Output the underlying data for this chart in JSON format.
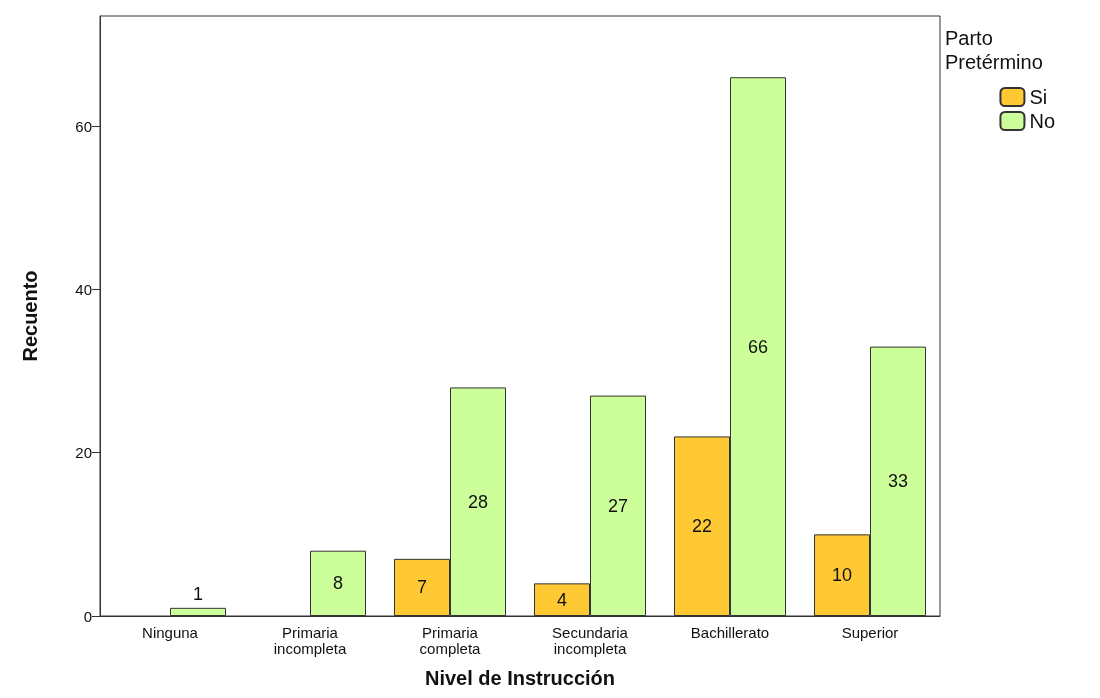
{
  "chart_data": {
    "type": "bar",
    "xlabel": "Nivel de Instrucción",
    "ylabel": "Recuento",
    "legend_title": "Parto Pretérmino",
    "categories": [
      "Ninguna",
      "Primaria incompleta",
      "Primaria completa",
      "Secundaria incompleta",
      "Bachillerato",
      "Superior"
    ],
    "series": [
      {
        "name": "Si",
        "color": "#ffc933",
        "values": [
          null,
          null,
          7,
          4,
          22,
          10
        ]
      },
      {
        "name": "No",
        "color": "#ccff99",
        "values": [
          1,
          8,
          28,
          27,
          66,
          33
        ]
      }
    ],
    "ylim": [
      0,
      73.5
    ],
    "yticks": [
      0,
      20,
      40,
      60
    ],
    "grid": false,
    "legend": "top right",
    "data_labels": true
  }
}
